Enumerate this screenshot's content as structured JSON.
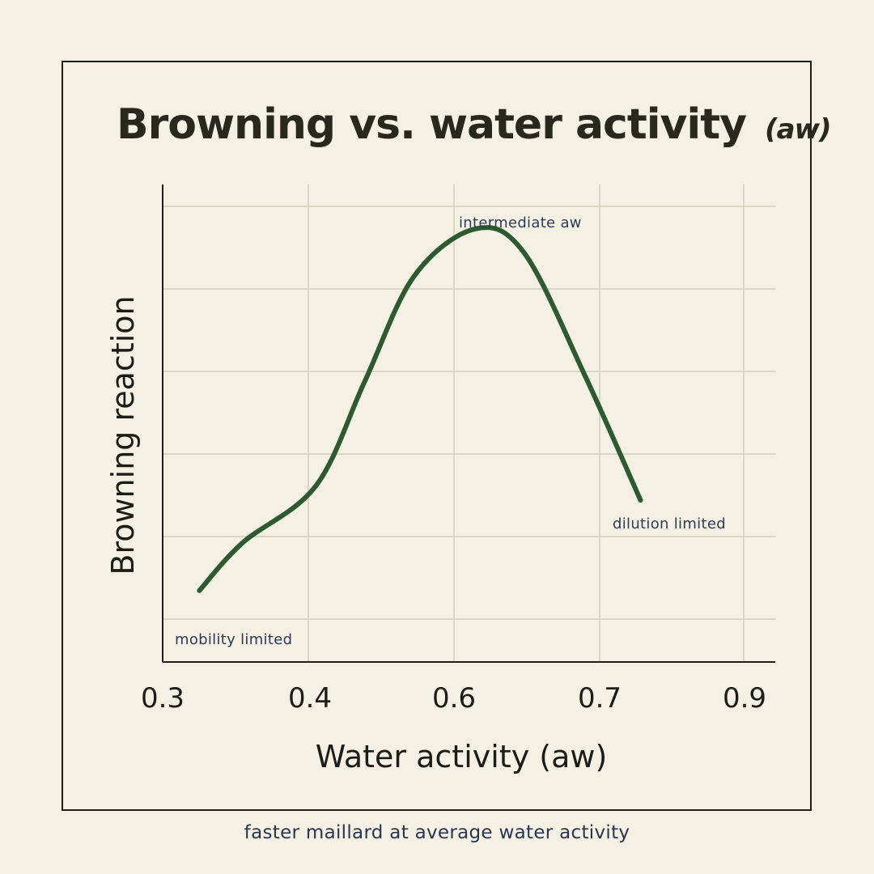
{
  "chart_data": {
    "type": "line",
    "title": "Browning vs. water activity",
    "title_suffix": "(aw)",
    "xlabel": "Water activity (aw)",
    "ylabel": "Browning reaction",
    "x_tick_labels": [
      "0.3",
      "0.4",
      "0.6",
      "0.7",
      "0.9"
    ],
    "ylim": [
      0,
      1
    ],
    "series": [
      {
        "name": "Browning reaction",
        "color": "#2f5a30",
        "points": [
          {
            "t": 0.06,
            "y": 0.15
          },
          {
            "t": 0.13,
            "y": 0.25
          },
          {
            "t": 0.25,
            "y": 0.37
          },
          {
            "t": 0.33,
            "y": 0.59
          },
          {
            "t": 0.41,
            "y": 0.81
          },
          {
            "t": 0.51,
            "y": 0.91
          },
          {
            "t": 0.59,
            "y": 0.86
          },
          {
            "t": 0.69,
            "y": 0.6
          },
          {
            "t": 0.78,
            "y": 0.34
          }
        ]
      }
    ],
    "annotations": [
      {
        "name": "peak-annotation",
        "text": "intermediate aw"
      },
      {
        "name": "dilution-annotation",
        "text": "dilution limited"
      },
      {
        "name": "mobility-annotation",
        "text": "mobility limited"
      }
    ]
  },
  "footer": "faster maillard at average water activity"
}
